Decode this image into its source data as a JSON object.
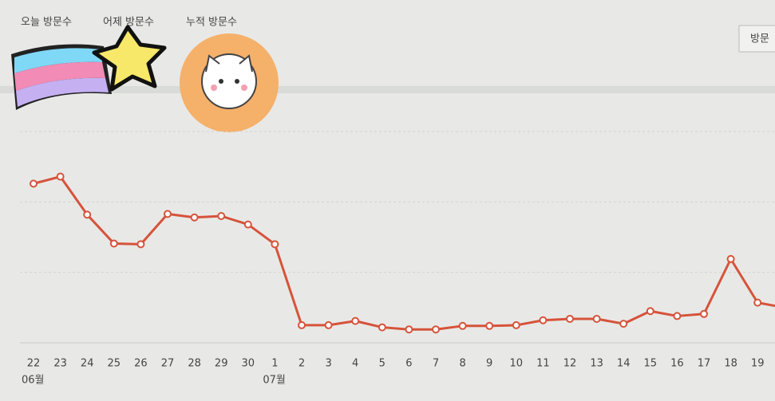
{
  "tabs": [
    "오늘 방문수",
    "어제 방문수",
    "누적 방문수"
  ],
  "button": "방문",
  "chart_data": {
    "type": "line",
    "categories": [
      "22",
      "23",
      "24",
      "25",
      "26",
      "27",
      "28",
      "29",
      "30",
      "1",
      "2",
      "3",
      "4",
      "5",
      "6",
      "7",
      "8",
      "9",
      "10",
      "11",
      "12",
      "13",
      "14",
      "15",
      "16",
      "17",
      "18",
      "19",
      null
    ],
    "months": [
      "06월",
      null,
      null,
      null,
      null,
      null,
      null,
      null,
      null,
      "07월",
      null,
      null,
      null,
      null,
      null,
      null,
      null,
      null,
      null,
      null,
      null,
      null,
      null,
      null,
      null,
      null,
      null,
      null,
      null
    ],
    "series": [
      {
        "color": "#d6533b",
        "values": [
          226,
          236,
          182,
          141,
          140,
          183,
          178,
          180,
          168,
          140,
          25,
          25,
          31,
          22,
          19,
          19,
          24,
          24,
          25,
          32,
          34,
          34,
          27,
          45,
          38,
          41,
          119,
          57,
          50
        ]
      }
    ],
    "ylim": [
      0,
      300
    ],
    "yticks": [
      0,
      100,
      200,
      300
    ],
    "grid": true
  }
}
